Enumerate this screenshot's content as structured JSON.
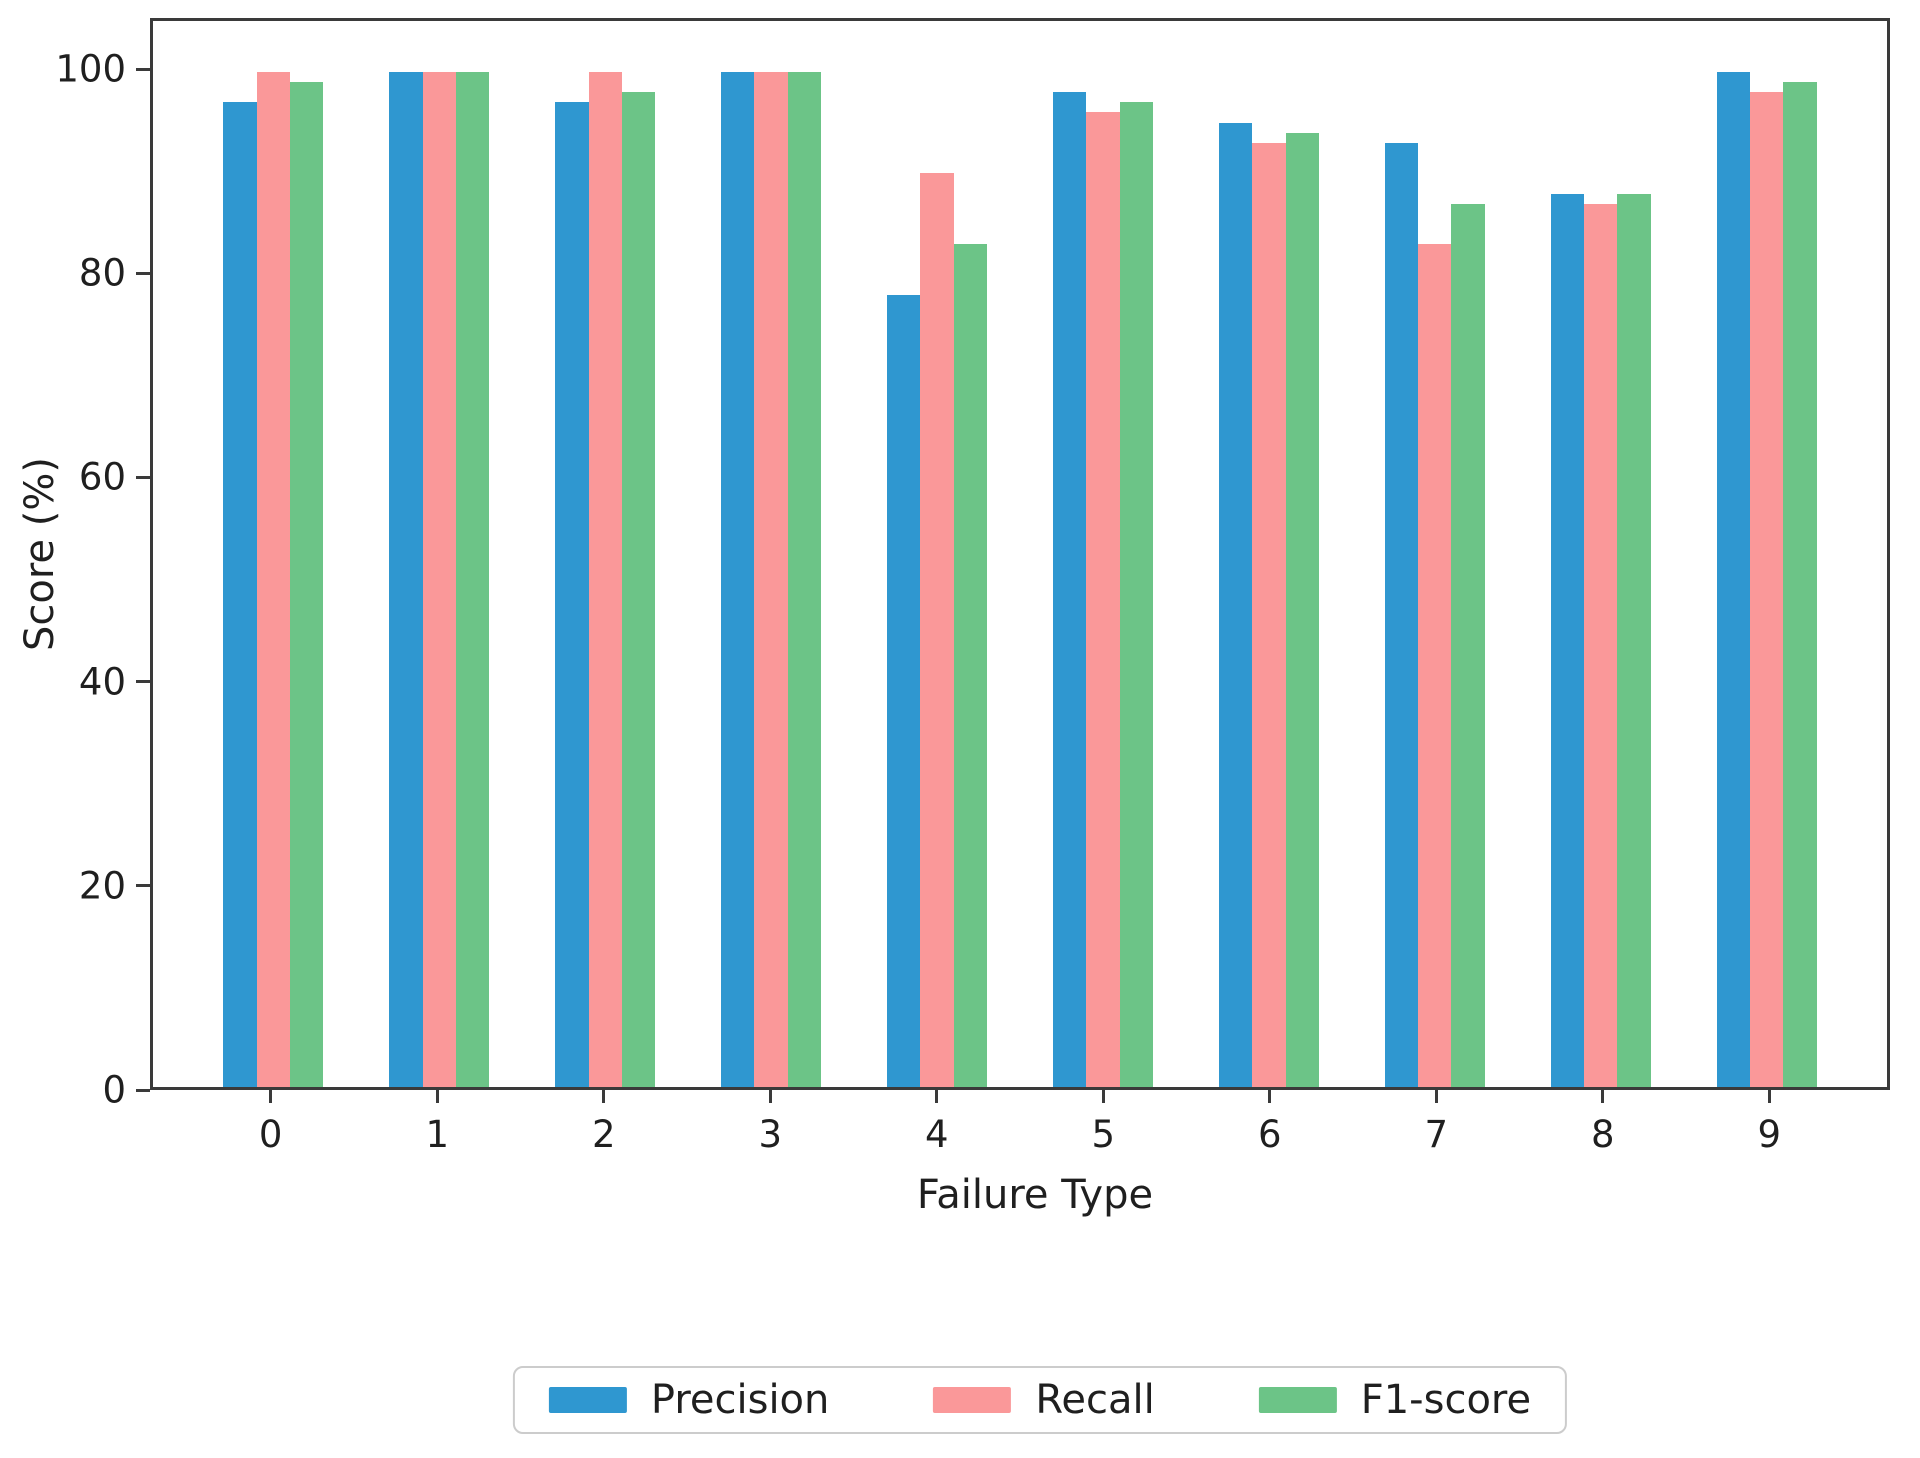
{
  "chart_data": {
    "type": "bar",
    "title": "",
    "xlabel": "Failure Type",
    "ylabel": "Score (%)",
    "categories": [
      "0",
      "1",
      "2",
      "3",
      "4",
      "5",
      "6",
      "7",
      "8",
      "9"
    ],
    "series": [
      {
        "name": "Precision",
        "color": "#2F97D0",
        "values": [
          97,
          100,
          97,
          100,
          78,
          98,
          95,
          93,
          88,
          100
        ]
      },
      {
        "name": "Recall",
        "color": "#FA9899",
        "values": [
          100,
          100,
          100,
          100,
          90,
          96,
          93,
          83,
          87,
          98
        ]
      },
      {
        "name": "F1-score",
        "color": "#6CC487",
        "values": [
          99,
          100,
          98,
          100,
          83,
          97,
          94,
          87,
          88,
          99
        ]
      }
    ],
    "ylim": [
      0,
      105
    ],
    "yticks": [
      0,
      20,
      40,
      60,
      80,
      100
    ],
    "grid": false,
    "legend_position": "bottom-center"
  }
}
